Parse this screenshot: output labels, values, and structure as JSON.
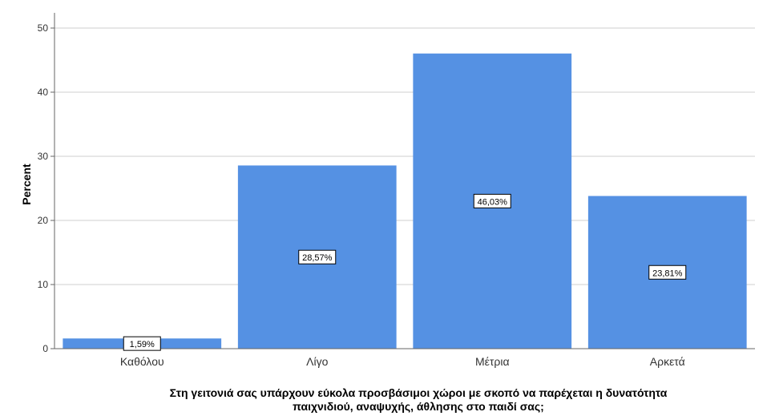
{
  "chart_data": {
    "type": "bar",
    "categories": [
      "Καθόλου",
      "Λίγο",
      "Μέτρια",
      "Αρκετά"
    ],
    "values": [
      1.59,
      28.57,
      46.03,
      23.81
    ],
    "data_labels": [
      "1,59%",
      "28,57%",
      "46,03%",
      "23,81%"
    ],
    "ylabel": "Percent",
    "xlabel": "Στη γειτονιά σας υπάρχουν εύκολα προσβάσιμοι χώροι με σκοπό να παρέχεται η δυνατότητα παιχνιδιού, αναψυχής, άθλησης στο παιδί σας;",
    "xlabel_lines": [
      "Στη γειτονιά σας υπάρχουν εύκολα προσβάσιμοι χώροι με σκοπό να παρέχεται η δυνατότητα",
      "παιχνιδιού, αναψυχής, άθλησης  στο παιδί σας;"
    ],
    "ylim": [
      0,
      50
    ],
    "yticks": [
      0,
      10,
      20,
      30,
      40,
      50
    ],
    "grid": true,
    "bar_color": "#5591e3",
    "grid_color": "#cfcfcf",
    "axis_color": "#666666",
    "legend": "none"
  }
}
